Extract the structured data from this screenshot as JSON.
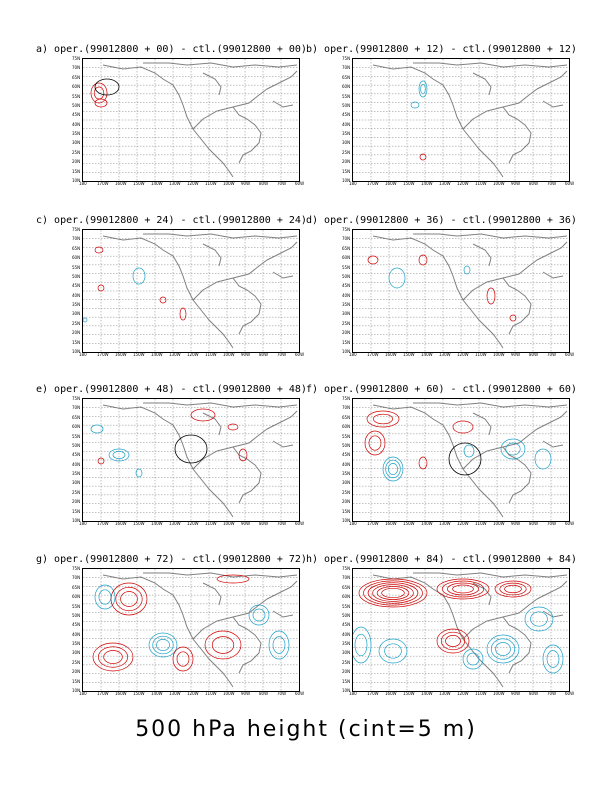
{
  "figure": {
    "footer": "500 hPa height (cint=5 m)",
    "colors": {
      "positive": "#d00000",
      "negative": "#1aa0c8",
      "coast": "#808080",
      "grid": "#666666"
    },
    "lat_labels": [
      "75N",
      "70N",
      "65N",
      "60N",
      "55N",
      "50N",
      "45N",
      "40N",
      "35N",
      "30N",
      "25N",
      "20N",
      "15N",
      "10N"
    ],
    "lon_labels": [
      "180",
      "170W",
      "160W",
      "150W",
      "140W",
      "130W",
      "120W",
      "110W",
      "100W",
      "90W",
      "80W",
      "70W",
      "60W"
    ],
    "panels": [
      {
        "title": "a) oper.(99012800 + 00) - ctl.(99012800 + 00)"
      },
      {
        "title": "b) oper.(99012800 + 12) - ctl.(99012800 + 12)"
      },
      {
        "title": "c) oper.(99012800 + 24) - ctl.(99012800 + 24)"
      },
      {
        "title": "d) oper.(99012800 + 36) - ctl.(99012800 + 36)"
      },
      {
        "title": "e) oper.(99012800 + 48) - ctl.(99012800 + 48)"
      },
      {
        "title": "f) oper.(99012800 + 60) - ctl.(99012800 + 60)"
      },
      {
        "title": "g) oper.(99012800 + 72) - ctl.(99012800 + 72)"
      },
      {
        "title": "h) oper.(99012800 + 84) - ctl.(99012800 + 84)"
      }
    ]
  }
}
